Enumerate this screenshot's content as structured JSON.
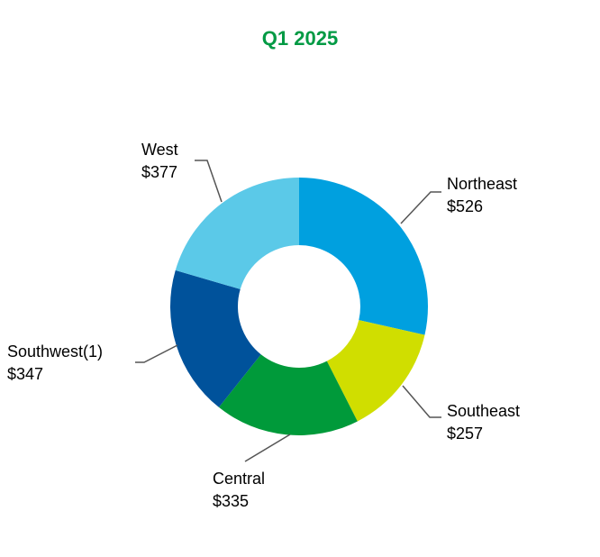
{
  "chart_data": {
    "type": "pie",
    "variant": "donut",
    "title": "Q1 2025",
    "title_color": "#009A44",
    "start": "top, clockwise",
    "slices": [
      {
        "label": "Northeast",
        "value": 526,
        "value_label": "$526",
        "color": "#00A0DF"
      },
      {
        "label": "Southeast",
        "value": 257,
        "value_label": "$257",
        "color": "#D0DE00"
      },
      {
        "label": "Central",
        "value": 335,
        "value_label": "$335",
        "color": "#009A3A"
      },
      {
        "label": "Southwest(1)",
        "value": 347,
        "value_label": "$347",
        "color": "#00529B"
      },
      {
        "label": "West",
        "value": 377,
        "value_label": "$377",
        "color": "#5BC9E8"
      }
    ]
  }
}
